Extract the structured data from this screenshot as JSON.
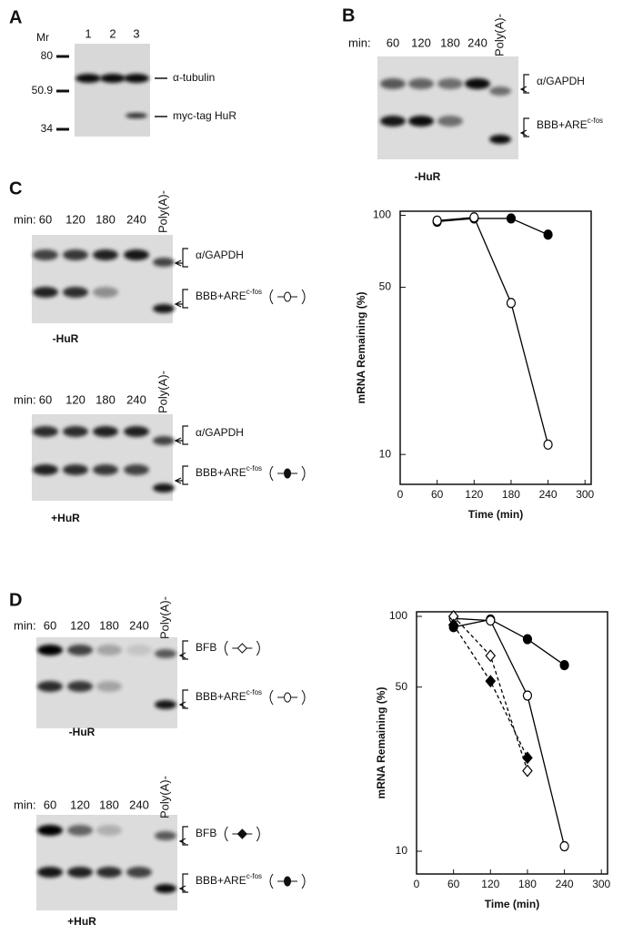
{
  "panels": {
    "A": {
      "label": "A",
      "mr_label": "Mr",
      "lanes": [
        "1",
        "2",
        "3"
      ],
      "markers": [
        "80",
        "50.9",
        "34"
      ],
      "bands": [
        "α-tubulin",
        "myc-tag HuR"
      ]
    },
    "B": {
      "label": "B",
      "min_label": "min:",
      "lanes": [
        "60",
        "120",
        "180",
        "240",
        "Poly(A)-"
      ],
      "bands": [
        {
          "text": "α/GAPDH"
        },
        {
          "text": "BBB+ARE",
          "sup": "c-fos"
        }
      ],
      "condition": "-HuR"
    },
    "C": {
      "label": "C",
      "gels": [
        {
          "min_label": "min:",
          "lanes": [
            "60",
            "120",
            "180",
            "240",
            "Poly(A)-"
          ],
          "bands": [
            {
              "text": "α/GAPDH"
            },
            {
              "text": "BBB+ARE",
              "sup": "c-fos"
            }
          ],
          "condition": "-HuR"
        },
        {
          "min_label": "min:",
          "lanes": [
            "60",
            "120",
            "180",
            "240",
            "Poly(A)-"
          ],
          "bands": [
            {
              "text": "α/GAPDH"
            },
            {
              "text": "BBB+ARE",
              "sup": "c-fos"
            }
          ],
          "condition": "+HuR"
        }
      ]
    },
    "D": {
      "label": "D",
      "gels": [
        {
          "min_label": "min:",
          "lanes": [
            "60",
            "120",
            "180",
            "240",
            "Poly(A)-"
          ],
          "bands": [
            {
              "text": "BFB"
            },
            {
              "text": "BBB+ARE",
              "sup": "c-fos"
            }
          ],
          "condition": "-HuR"
        },
        {
          "min_label": "min:",
          "lanes": [
            "60",
            "120",
            "180",
            "240",
            "Poly(A)-"
          ],
          "bands": [
            {
              "text": "BFB"
            },
            {
              "text": "BBB+ARE",
              "sup": "c-fos"
            }
          ],
          "condition": "+HuR"
        }
      ]
    }
  },
  "chart_data": [
    {
      "type": "line",
      "x_label": "Time (min)",
      "y_label": "mRNA Remaining (%)",
      "log_y": true,
      "xlim": [
        0,
        310
      ],
      "xticks": [
        0,
        60,
        120,
        180,
        240,
        300
      ],
      "ylim": [
        7.5,
        104
      ],
      "yticks": [
        10,
        50,
        100
      ],
      "series": [
        {
          "color": "#000000",
          "marker": "circle",
          "filled": true,
          "dashed": false,
          "x": [
            60,
            120,
            180,
            240
          ],
          "values": [
            94,
            97,
            97,
            83
          ]
        },
        {
          "color": "#000000",
          "marker": "circle",
          "filled": false,
          "dashed": false,
          "x": [
            60,
            120,
            180,
            240
          ],
          "values": [
            95,
            98,
            43,
            11
          ]
        }
      ]
    },
    {
      "type": "line",
      "x_label": "Time (min)",
      "y_label": "mRNA Remaining (%)",
      "log_y": true,
      "xlim": [
        0,
        310
      ],
      "xticks": [
        0,
        60,
        120,
        180,
        240,
        300
      ],
      "ylim": [
        8,
        104.6
      ],
      "yticks": [
        10,
        50,
        100
      ],
      "series": [
        {
          "color": "#000000",
          "marker": "circle",
          "filled": true,
          "dashed": false,
          "x": [
            60,
            120,
            180,
            240
          ],
          "values": [
            90,
            97,
            80,
            62
          ]
        },
        {
          "color": "#000000",
          "marker": "circle",
          "filled": false,
          "dashed": false,
          "x": [
            60,
            120,
            180,
            240
          ],
          "values": [
            98,
            96,
            46,
            10.5
          ]
        },
        {
          "color": "#000000",
          "marker": "diamond",
          "filled": false,
          "dashed": true,
          "x": [
            60,
            120,
            180
          ],
          "values": [
            100,
            68,
            22
          ]
        },
        {
          "color": "#000000",
          "marker": "diamond",
          "filled": true,
          "dashed": true,
          "x": [
            60,
            120,
            180
          ],
          "values": [
            92,
            53,
            25
          ]
        }
      ]
    }
  ]
}
